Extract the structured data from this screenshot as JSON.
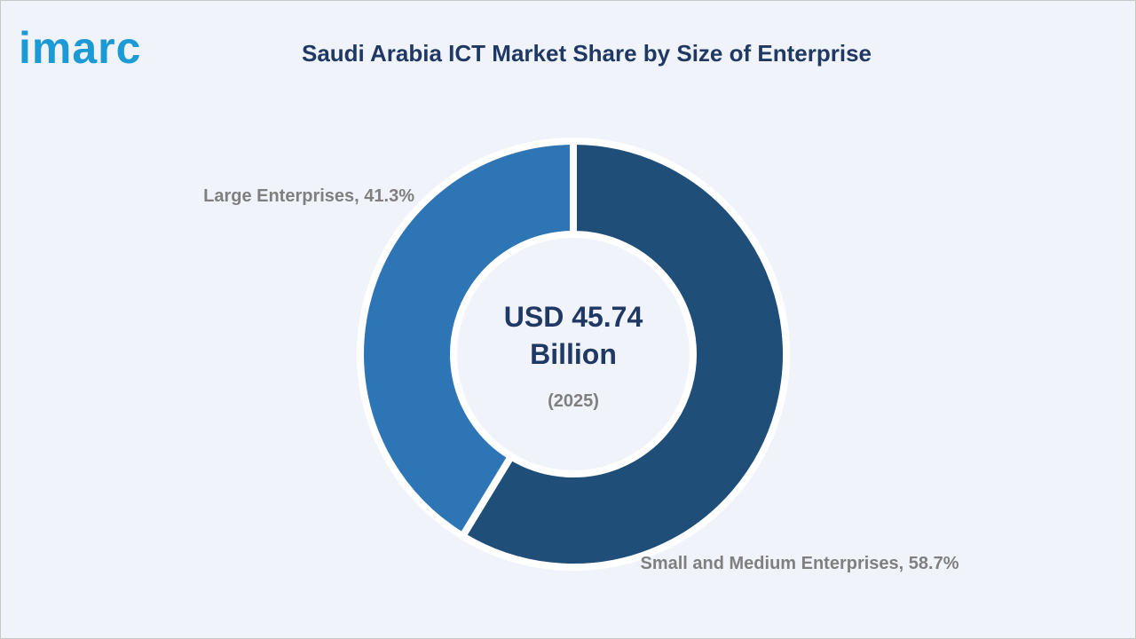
{
  "brand": "imarc",
  "chart_data": {
    "type": "donut",
    "title": "Saudi Arabia ICT Market Share by Size of Enterprise",
    "values": [
      58.7,
      41.3
    ],
    "value_labels": [
      "Small and Medium Enterprises, 58.7%",
      "Large Enterprises, 41.3%"
    ],
    "colors": [
      "#1f4e79",
      "#2e75b6"
    ],
    "center_label": "USD 45.74 Billion",
    "center_sublabel": "(2025)"
  }
}
